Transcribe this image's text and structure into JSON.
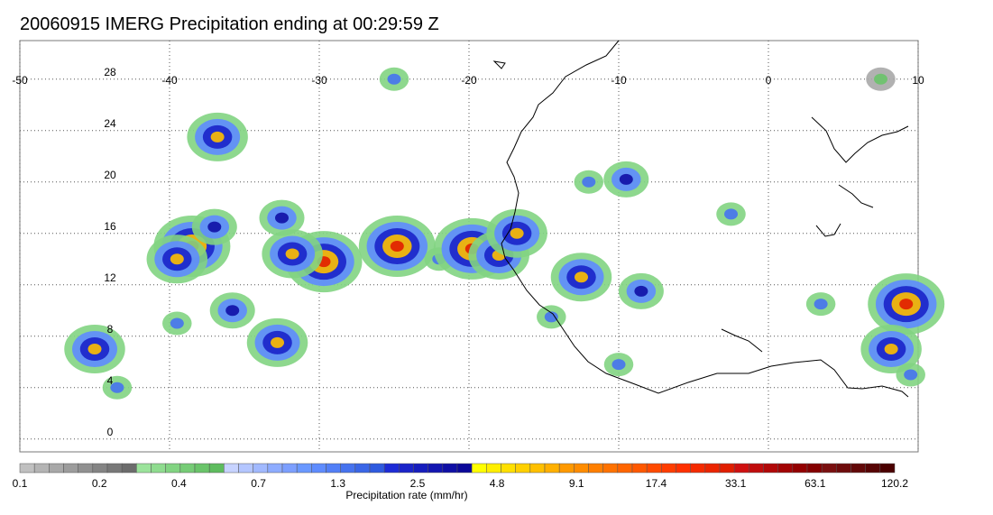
{
  "title": "20060915 IMERG Precipitation ending at 00:29:59 Z",
  "map": {
    "lon_range": [
      -50,
      10
    ],
    "lat_range": [
      -1,
      31
    ],
    "lon_ticks": [
      "-50",
      "-40",
      "-30",
      "-20",
      "-10",
      "0",
      "10"
    ],
    "lat_ticks": [
      "28",
      "24",
      "20",
      "16",
      "12",
      "8",
      "4",
      "0"
    ],
    "gridlines": "dotted",
    "background": "#ffffff",
    "coastline_color": "#000000"
  },
  "colorbar": {
    "label": "Precipitation rate (mm/hr)",
    "tick_labels": [
      "0.1",
      "0.2",
      "0.4",
      "0.7",
      "1.3",
      "2.5",
      "4.8",
      "9.1",
      "17.4",
      "33.1",
      "63.1",
      "120.2"
    ],
    "colors": [
      "#c0c0c0",
      "#b4b4b4",
      "#a8a8a8",
      "#9c9c9c",
      "#909090",
      "#848484",
      "#787878",
      "#6c6c6c",
      "#9be39b",
      "#8fdc8f",
      "#82d482",
      "#76cc76",
      "#6ac46a",
      "#5ebc5e",
      "#c7d3ff",
      "#b4c6ff",
      "#a1b9ff",
      "#8eacff",
      "#7c9fff",
      "#6a98ff",
      "#5e8cff",
      "#527ff7",
      "#4673ef",
      "#3a66e7",
      "#2e5adf",
      "#1d2bd6",
      "#1a24c9",
      "#161dbd",
      "#1316b1",
      "#0f0fa5",
      "#0b0899",
      "#ffff00",
      "#ffef00",
      "#ffe000",
      "#ffd000",
      "#ffc000",
      "#ffb000",
      "#ff9900",
      "#ff8c00",
      "#ff7f00",
      "#ff7200",
      "#ff6500",
      "#ff5800",
      "#ff4a00",
      "#ff3d00",
      "#ff3000",
      "#f52a00",
      "#eb2400",
      "#e11e00",
      "#cf1010",
      "#c00c0c",
      "#b10808",
      "#a20404",
      "#930000",
      "#840000",
      "#7a1010",
      "#6e0c0c",
      "#620808",
      "#560404",
      "#4a0000"
    ]
  },
  "precip_cells": [
    {
      "lon": -38.5,
      "lat": 15.0,
      "intensity": 4
    },
    {
      "lon": -39.5,
      "lat": 14.0,
      "intensity": 3
    },
    {
      "lon": -37.0,
      "lat": 16.5,
      "intensity": 2
    },
    {
      "lon": -36.8,
      "lat": 23.5,
      "intensity": 3
    },
    {
      "lon": -32.5,
      "lat": 17.2,
      "intensity": 2
    },
    {
      "lon": -29.7,
      "lat": 13.8,
      "intensity": 4
    },
    {
      "lon": -31.8,
      "lat": 14.4,
      "intensity": 3
    },
    {
      "lon": -32.8,
      "lat": 7.5,
      "intensity": 3
    },
    {
      "lon": -35.8,
      "lat": 10.0,
      "intensity": 2
    },
    {
      "lon": -39.5,
      "lat": 9.0,
      "intensity": 1
    },
    {
      "lon": -45.0,
      "lat": 7.0,
      "intensity": 3
    },
    {
      "lon": -43.5,
      "lat": 4.0,
      "intensity": 1
    },
    {
      "lon": -24.8,
      "lat": 15.0,
      "intensity": 4
    },
    {
      "lon": -22.0,
      "lat": 14.0,
      "intensity": 1
    },
    {
      "lon": -19.8,
      "lat": 14.8,
      "intensity": 4
    },
    {
      "lon": -18.0,
      "lat": 14.3,
      "intensity": 3
    },
    {
      "lon": -16.8,
      "lat": 16.0,
      "intensity": 3
    },
    {
      "lon": -12.5,
      "lat": 12.6,
      "intensity": 3
    },
    {
      "lon": -9.5,
      "lat": 20.2,
      "intensity": 2
    },
    {
      "lon": -8.5,
      "lat": 11.5,
      "intensity": 2
    },
    {
      "lon": -10.0,
      "lat": 5.8,
      "intensity": 1
    },
    {
      "lon": -14.5,
      "lat": 9.5,
      "intensity": 1
    },
    {
      "lon": 9.2,
      "lat": 10.5,
      "intensity": 4
    },
    {
      "lon": 8.2,
      "lat": 7.0,
      "intensity": 3
    },
    {
      "lon": 9.5,
      "lat": 5.0,
      "intensity": 1
    },
    {
      "lon": 3.5,
      "lat": 10.5,
      "intensity": 1
    },
    {
      "lon": 7.5,
      "lat": 28.0,
      "intensity": 0
    },
    {
      "lon": -25.0,
      "lat": 28.0,
      "intensity": 1
    },
    {
      "lon": -2.5,
      "lat": 17.5,
      "intensity": 1
    },
    {
      "lon": -12.0,
      "lat": 20.0,
      "intensity": 1
    }
  ]
}
